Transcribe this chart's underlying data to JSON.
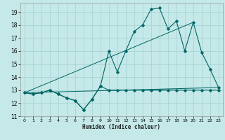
{
  "xlabel": "Humidex (Indice chaleur)",
  "background_color": "#c5e8e8",
  "grid_color": "#aad4d4",
  "line_color": "#006666",
  "xlim": [
    -0.5,
    23.5
  ],
  "ylim": [
    11,
    19.7
  ],
  "yticks": [
    11,
    12,
    13,
    14,
    15,
    16,
    17,
    18,
    19
  ],
  "xticks": [
    0,
    1,
    2,
    3,
    4,
    5,
    6,
    7,
    8,
    9,
    10,
    11,
    12,
    13,
    14,
    15,
    16,
    17,
    18,
    19,
    20,
    21,
    22,
    23
  ],
  "series_main_x": [
    0,
    1,
    2,
    3,
    4,
    5,
    6,
    7,
    8,
    9,
    10,
    11,
    12,
    13,
    14,
    15,
    16,
    17,
    18,
    19,
    20,
    21,
    22,
    23
  ],
  "series_main_y": [
    12.8,
    12.7,
    12.8,
    13.0,
    12.7,
    12.4,
    12.2,
    11.5,
    12.3,
    13.3,
    16.0,
    14.4,
    16.0,
    17.5,
    18.0,
    19.2,
    19.3,
    17.7,
    18.3,
    16.0,
    18.2,
    15.9,
    14.6,
    13.2
  ],
  "series_flat_x": [
    0,
    1,
    2,
    3,
    4,
    5,
    6,
    7,
    8,
    9,
    10,
    11,
    12,
    13,
    14,
    15,
    16,
    17,
    18,
    19,
    20,
    21,
    22,
    23
  ],
  "series_flat_y": [
    12.8,
    12.7,
    12.8,
    13.0,
    12.7,
    12.4,
    12.2,
    11.5,
    12.3,
    13.3,
    13.0,
    13.0,
    13.0,
    13.0,
    13.0,
    13.0,
    13.0,
    13.0,
    13.0,
    13.0,
    13.0,
    13.0,
    13.0,
    13.0
  ],
  "line1_x": [
    0,
    20
  ],
  "line1_y": [
    12.8,
    18.2
  ],
  "line2_x": [
    0,
    23
  ],
  "line2_y": [
    12.8,
    13.2
  ]
}
